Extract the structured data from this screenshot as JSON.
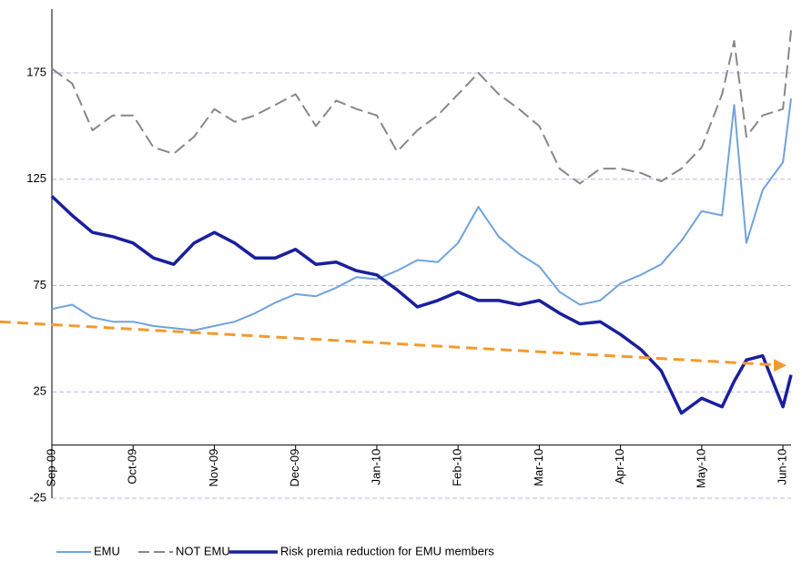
{
  "chart_data": {
    "type": "line",
    "xlim": [
      0,
      9.1
    ],
    "xticks": [
      {
        "value": 0,
        "label": "Sep-09"
      },
      {
        "value": 1,
        "label": "Oct-09"
      },
      {
        "value": 2,
        "label": "Nov-09"
      },
      {
        "value": 3,
        "label": "Dec-09"
      },
      {
        "value": 4,
        "label": "Jan-10"
      },
      {
        "value": 5,
        "label": "Feb-10"
      },
      {
        "value": 6,
        "label": "Mar-10"
      },
      {
        "value": 7,
        "label": "Apr-10"
      },
      {
        "value": 8,
        "label": "May-10"
      },
      {
        "value": 9,
        "label": "Jun-10"
      }
    ],
    "ylim": [
      -25,
      205
    ],
    "yticks": [
      -25,
      25,
      75,
      125,
      175
    ],
    "grid": true,
    "x": [
      0,
      0.25,
      0.5,
      0.75,
      1,
      1.25,
      1.5,
      1.75,
      2,
      2.25,
      2.5,
      2.75,
      3,
      3.25,
      3.5,
      3.75,
      4,
      4.25,
      4.5,
      4.75,
      5,
      5.25,
      5.5,
      5.75,
      6,
      6.25,
      6.5,
      6.75,
      7,
      7.25,
      7.5,
      7.75,
      8,
      8.25,
      8.4,
      8.55,
      8.75,
      9,
      9.1
    ],
    "series": [
      {
        "name": "EMU",
        "color": "#6fa3dc",
        "dash": false,
        "width": 2,
        "values": [
          64,
          66,
          60,
          58,
          58,
          56,
          55,
          54,
          56,
          58,
          62,
          67,
          71,
          70,
          74,
          79,
          78,
          82,
          87,
          86,
          95,
          112,
          98,
          90,
          84,
          72,
          66,
          68,
          76,
          80,
          85,
          96,
          110,
          108,
          160,
          95,
          120,
          133,
          163
        ]
      },
      {
        "name": "NOT EMU",
        "color": "#888888",
        "dash": true,
        "width": 2,
        "values": [
          177,
          170,
          148,
          155,
          155,
          140,
          137,
          145,
          158,
          152,
          155,
          160,
          165,
          150,
          162,
          158,
          155,
          138,
          148,
          155,
          165,
          175,
          165,
          158,
          150,
          130,
          123,
          130,
          130,
          128,
          124,
          130,
          140,
          165,
          190,
          145,
          155,
          158,
          195
        ]
      },
      {
        "name": "Risk premia reduction for EMU members",
        "color": "#1a1f9c",
        "dash": false,
        "width": 3.5,
        "values": [
          117,
          108,
          100,
          98,
          95,
          88,
          85,
          95,
          100,
          95,
          88,
          88,
          92,
          85,
          86,
          82,
          80,
          73,
          65,
          68,
          72,
          68,
          68,
          66,
          68,
          62,
          57,
          58,
          52,
          45,
          35,
          15,
          22,
          18,
          30,
          40,
          42,
          18,
          33
        ]
      }
    ],
    "trend": {
      "x": [
        -0.64,
        9.0
      ],
      "values": [
        58,
        37.5
      ],
      "color": "#f39a2e"
    }
  }
}
